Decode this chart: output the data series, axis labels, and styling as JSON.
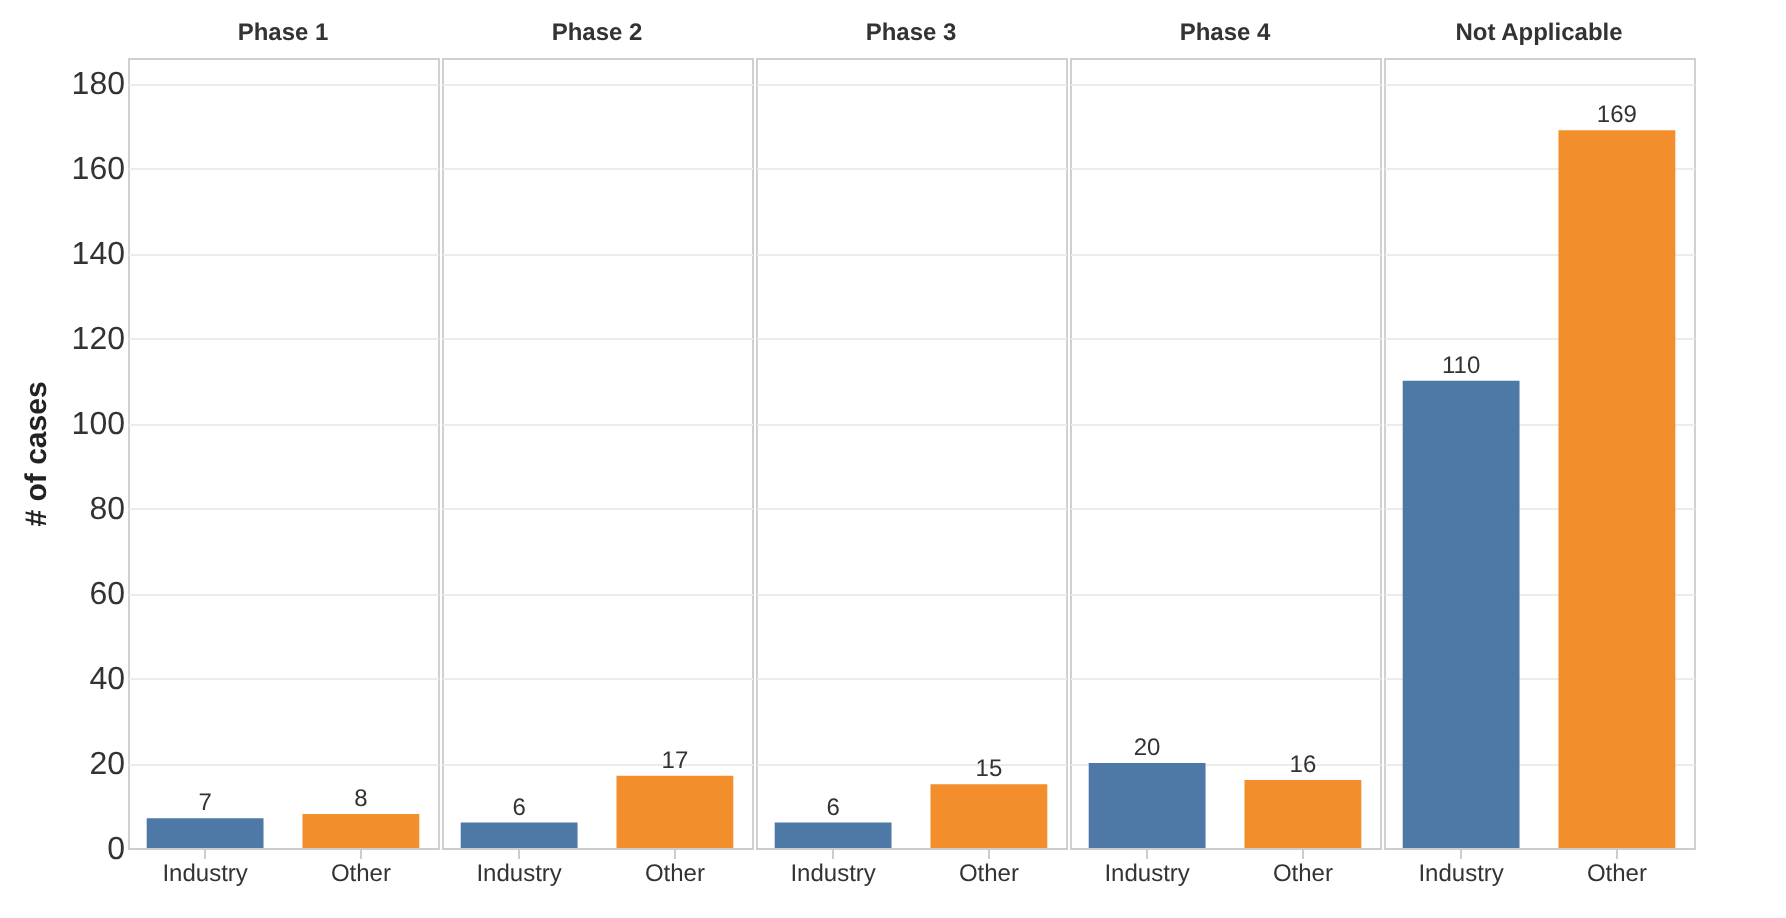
{
  "chart_data": [
    {
      "type": "bar",
      "title": "Phase 1",
      "ylabel": "# of cases",
      "categories": [
        "Industry",
        "Other"
      ],
      "values": [
        7,
        8
      ],
      "colors": [
        "#4e79a7",
        "#f28e2b"
      ],
      "ylim": [
        0,
        186
      ],
      "yticks": [
        0,
        20,
        40,
        60,
        80,
        100,
        120,
        140,
        160,
        180
      ],
      "grid": "y",
      "data_labels": true
    },
    {
      "type": "bar",
      "title": "Phase 2",
      "categories": [
        "Industry",
        "Other"
      ],
      "values": [
        6,
        17
      ],
      "colors": [
        "#4e79a7",
        "#f28e2b"
      ],
      "ylim": [
        0,
        186
      ],
      "yticks": [
        0,
        20,
        40,
        60,
        80,
        100,
        120,
        140,
        160,
        180
      ],
      "grid": "y",
      "data_labels": true,
      "tick_labels": "x"
    },
    {
      "type": "bar",
      "title": "Phase 3",
      "categories": [
        "Industry",
        "Other"
      ],
      "values": [
        6,
        15
      ],
      "colors": [
        "#4e79a7",
        "#f28e2b"
      ],
      "ylim": [
        0,
        186
      ],
      "yticks": [
        0,
        20,
        40,
        60,
        80,
        100,
        120,
        140,
        160,
        180
      ],
      "grid": "y",
      "data_labels": true,
      "tick_labels": "x"
    },
    {
      "type": "bar",
      "title": "Phase 4",
      "categories": [
        "Industry",
        "Other"
      ],
      "values": [
        20,
        16
      ],
      "colors": [
        "#4e79a7",
        "#f28e2b"
      ],
      "ylim": [
        0,
        186
      ],
      "yticks": [
        0,
        20,
        40,
        60,
        80,
        100,
        120,
        140,
        160,
        180
      ],
      "grid": "y",
      "data_labels": true,
      "tick_labels": "x"
    },
    {
      "type": "bar",
      "title": "Not Applicable",
      "categories": [
        "Industry",
        "Other"
      ],
      "values": [
        110,
        169
      ],
      "colors": [
        "#4e79a7",
        "#f28e2b"
      ],
      "ylim": [
        0,
        186
      ],
      "yticks": [
        0,
        20,
        40,
        60,
        80,
        100,
        120,
        140,
        160,
        180
      ],
      "grid": "y",
      "data_labels": true,
      "tick_labels": "x"
    }
  ]
}
